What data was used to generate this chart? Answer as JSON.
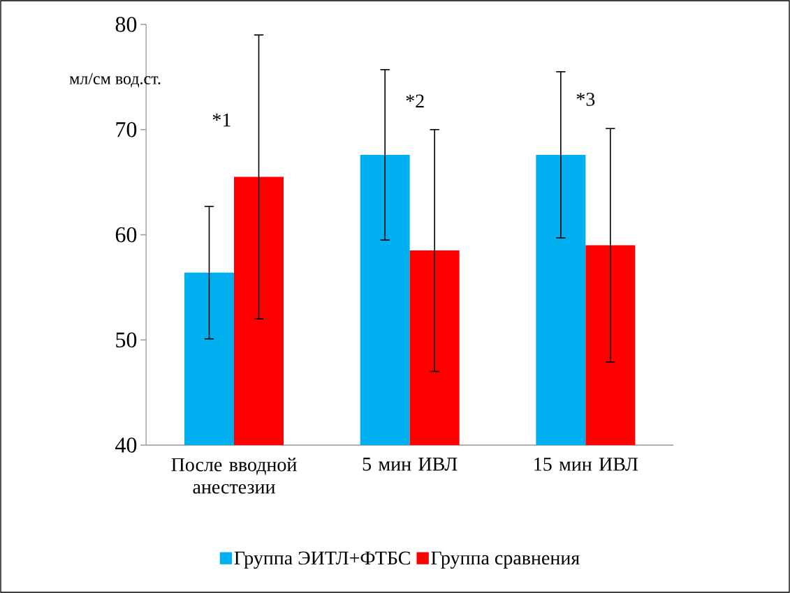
{
  "chart_data": {
    "type": "bar",
    "ylabel": "мл/см вод.ст.",
    "categories": [
      "После вводной анестезии",
      "5 мин ИВЛ",
      "15 мин ИВЛ"
    ],
    "series": [
      {
        "name": "Группа ЭИТЛ+ФТБС",
        "color": "#00b0f0",
        "values": [
          56.4,
          67.6,
          67.6
        ],
        "errors": [
          6.3,
          8.1,
          7.9
        ]
      },
      {
        "name": "Группа сравнения",
        "color": "#ff0000",
        "values": [
          65.5,
          58.5,
          59.0
        ],
        "errors": [
          13.5,
          11.5,
          11.1
        ]
      }
    ],
    "ylim": [
      40,
      80
    ],
    "yticks": [
      40,
      50,
      60,
      70,
      80
    ],
    "annotations": [
      "*1",
      "*2",
      "*3"
    ],
    "legend": "bottom"
  }
}
